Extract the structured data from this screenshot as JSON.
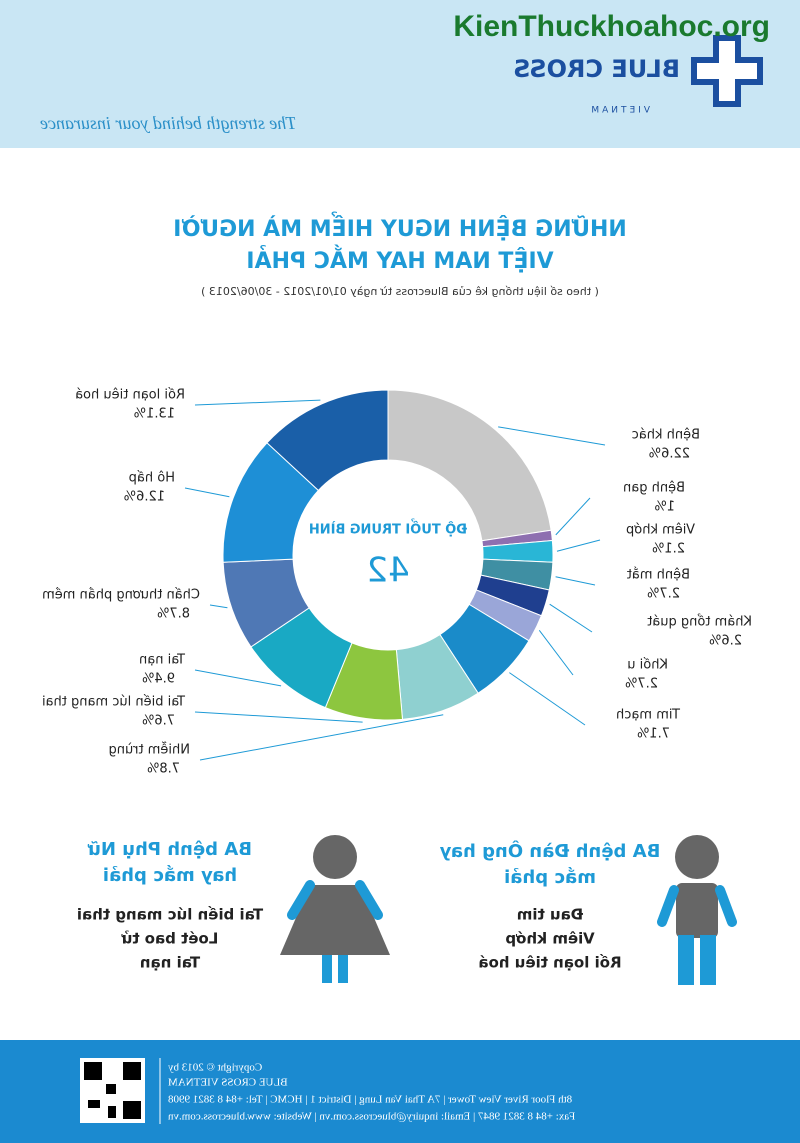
{
  "header": {
    "brand": "BLUE CROSS",
    "brand_sub": "VIETNAM",
    "tagline": "The strength behind your insurance",
    "watermark": "KienThuckhoahoc.org"
  },
  "chart_data": {
    "type": "pie",
    "title": "NHỮNG BỆNH NGUY HIỂM MÀ NGƯỜI",
    "title_line2": "VIỆT NAM HAY MẮC PHẢI",
    "subtitle": "( theo số liệu thống kê của Bluecross từ ngày 01/01/2012 - 30/06/2013 )",
    "center_label": "ĐỘ TUỔI TRUNG BÌNH",
    "center_value": 42,
    "categories": [
      "Bệnh khác",
      "Bệnh gan",
      "Viêm khớp",
      "Bệnh mắt",
      "Khám tổng quát",
      "Khối u",
      "Tim mạch",
      "Nhiễm trùng",
      "Tai biến lúc mang thai",
      "Tai nạn",
      "Chấn thương phần mềm",
      "Hô hấp",
      "Rối loạn tiêu hoá"
    ],
    "values": [
      22.6,
      1,
      2.1,
      2.7,
      2.6,
      2.7,
      7.1,
      7.8,
      7.6,
      9.4,
      8.7,
      12.6,
      13.1
    ],
    "value_labels": [
      "22.6%",
      "1%",
      "2.1%",
      "2.7%",
      "2.6%",
      "2.7%",
      "7.1%",
      "7.8%",
      "7.6%",
      "9.4%",
      "8.7%",
      "12.6%",
      "13.1%"
    ],
    "colors": [
      "#c8c8c8",
      "#8e6fb0",
      "#29b6d6",
      "#3f8fa3",
      "#1f3f8f",
      "#9aa6d8",
      "#1a8bc9",
      "#8fd0d0",
      "#8dc63f",
      "#19a9c4",
      "#4f78b5",
      "#1e8fd6",
      "#1a5fa8"
    ]
  },
  "women": {
    "title": "BA bệnh Phụ Nữ",
    "title_line2": "hay mắc phải",
    "items": [
      "Tai biến lúc mang thai",
      "Loét bao tử",
      "Tai nạn"
    ]
  },
  "men": {
    "title": "BA bệnh Đàn Ông hay",
    "title_line2": "mắc phải",
    "items": [
      "Đau tim",
      "Viêm khớp",
      "Rối loạn tiêu hoá"
    ]
  },
  "footer": {
    "copyright": "Copyright © 2013 by",
    "company": "BLUE CROSS VIETNAM",
    "address": "8th Floor River View Tower | 7A Thai Van Lung | District 1 | HCMC | Tel: +84 8 3821 9908",
    "contact": "Fax: +84 8 3821 9847 | Email: inquiry@bluecross.com.vn | Website: www.bluecross.com.vn"
  }
}
